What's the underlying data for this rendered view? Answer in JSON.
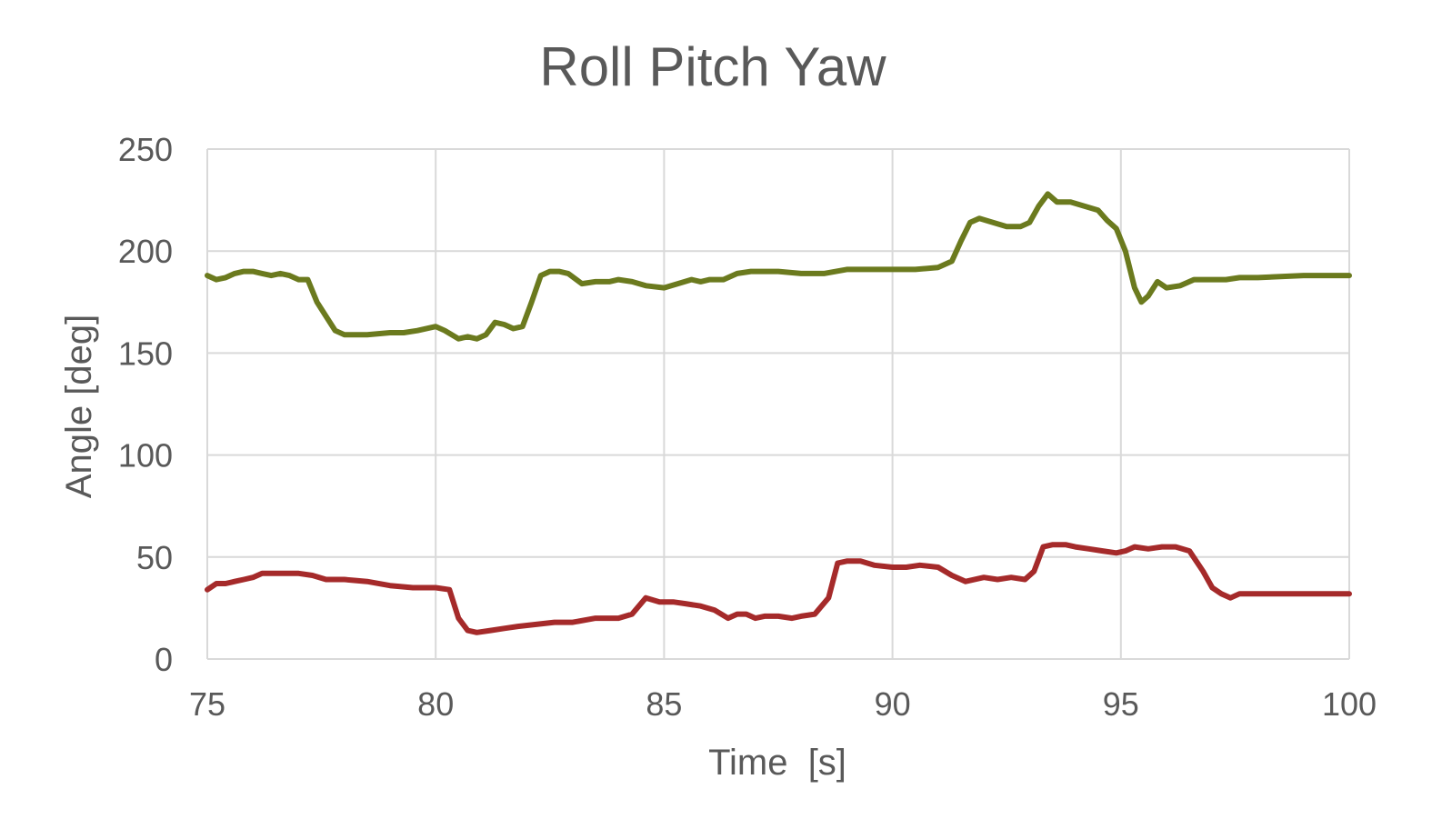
{
  "chart_data": {
    "type": "line",
    "title": "Roll Pitch Yaw",
    "xlabel": "Time  [s]",
    "ylabel": "Angle [deg]",
    "xlim": [
      75,
      100
    ],
    "ylim": [
      0,
      250
    ],
    "xticks": [
      75,
      80,
      85,
      90,
      95,
      100
    ],
    "yticks": [
      0,
      50,
      100,
      150,
      200,
      250
    ],
    "grid": true,
    "legend": "none",
    "series": [
      {
        "name": "Yaw",
        "color": "#6b7a1e",
        "x": [
          75.0,
          75.2,
          75.4,
          75.6,
          75.8,
          76.0,
          76.2,
          76.4,
          76.6,
          76.8,
          77.0,
          77.2,
          77.4,
          77.6,
          77.8,
          78.0,
          78.2,
          78.5,
          79.0,
          79.3,
          79.6,
          80.0,
          80.2,
          80.5,
          80.7,
          80.9,
          81.1,
          81.3,
          81.5,
          81.7,
          81.9,
          82.1,
          82.3,
          82.5,
          82.7,
          82.9,
          83.2,
          83.5,
          83.8,
          84.0,
          84.3,
          84.6,
          85.0,
          85.3,
          85.6,
          85.8,
          86.0,
          86.3,
          86.6,
          86.9,
          87.2,
          87.5,
          88.0,
          88.5,
          89.0,
          89.5,
          90.0,
          90.5,
          91.0,
          91.3,
          91.5,
          91.7,
          91.9,
          92.2,
          92.5,
          92.8,
          93.0,
          93.2,
          93.4,
          93.6,
          93.9,
          94.2,
          94.5,
          94.7,
          94.9,
          95.1,
          95.3,
          95.45,
          95.6,
          95.8,
          96.0,
          96.3,
          96.6,
          97.0,
          97.3,
          97.6,
          98.0,
          99.0,
          100.0
        ],
        "values": [
          188,
          186,
          187,
          189,
          190,
          190,
          189,
          188,
          189,
          188,
          186,
          186,
          175,
          168,
          161,
          159,
          159,
          159,
          160,
          160,
          161,
          163,
          161,
          157,
          158,
          157,
          159,
          165,
          164,
          162,
          163,
          175,
          188,
          190,
          190,
          189,
          184,
          185,
          185,
          186,
          185,
          183,
          182,
          184,
          186,
          185,
          186,
          186,
          189,
          190,
          190,
          190,
          189,
          189,
          191,
          191,
          191,
          191,
          192,
          195,
          205,
          214,
          216,
          214,
          212,
          212,
          214,
          222,
          228,
          224,
          224,
          222,
          220,
          215,
          211,
          200,
          182,
          175,
          178,
          185,
          182,
          183,
          186,
          186,
          186,
          187,
          187,
          188,
          188
        ]
      },
      {
        "name": "Roll",
        "color": "#a52a2a",
        "x": [
          75.0,
          75.2,
          75.4,
          75.6,
          75.8,
          76.0,
          76.2,
          76.4,
          76.6,
          76.8,
          77.0,
          77.3,
          77.6,
          78.0,
          78.5,
          79.0,
          79.5,
          80.0,
          80.3,
          80.5,
          80.7,
          80.9,
          81.2,
          81.5,
          81.8,
          82.2,
          82.6,
          83.0,
          83.5,
          84.0,
          84.3,
          84.6,
          84.9,
          85.2,
          85.5,
          85.8,
          86.1,
          86.4,
          86.6,
          86.8,
          87.0,
          87.2,
          87.5,
          87.8,
          88.0,
          88.3,
          88.6,
          88.8,
          89.0,
          89.3,
          89.6,
          90.0,
          90.3,
          90.6,
          91.0,
          91.3,
          91.6,
          92.0,
          92.3,
          92.6,
          92.9,
          93.1,
          93.3,
          93.5,
          93.8,
          94.0,
          94.3,
          94.6,
          94.9,
          95.1,
          95.3,
          95.6,
          95.9,
          96.2,
          96.5,
          96.8,
          97.0,
          97.2,
          97.4,
          97.6,
          98.0,
          99.0,
          100.0
        ],
        "values": [
          34,
          37,
          37,
          38,
          39,
          40,
          42,
          42,
          42,
          42,
          42,
          41,
          39,
          39,
          38,
          36,
          35,
          35,
          34,
          20,
          14,
          13,
          14,
          15,
          16,
          17,
          18,
          18,
          20,
          20,
          22,
          30,
          28,
          28,
          27,
          26,
          24,
          20,
          22,
          22,
          20,
          21,
          21,
          20,
          21,
          22,
          30,
          47,
          48,
          48,
          46,
          45,
          45,
          46,
          45,
          41,
          38,
          40,
          39,
          40,
          39,
          43,
          55,
          56,
          56,
          55,
          54,
          53,
          52,
          53,
          55,
          54,
          55,
          55,
          53,
          43,
          35,
          32,
          30,
          32,
          32,
          32,
          32
        ]
      }
    ]
  }
}
